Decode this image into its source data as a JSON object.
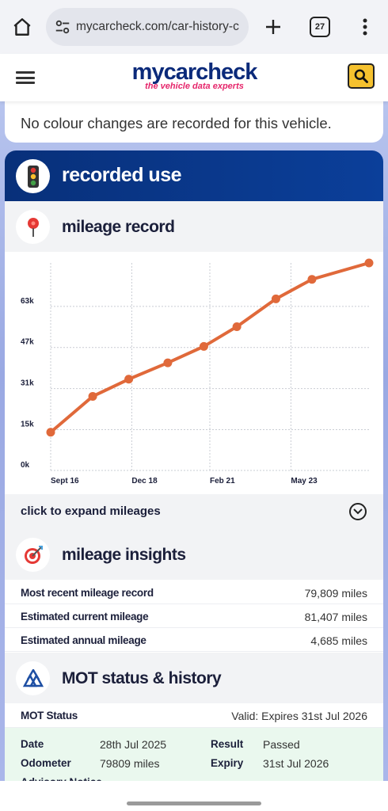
{
  "browser": {
    "url": "mycarcheck.com/car-history-c",
    "tab_count": "27"
  },
  "site": {
    "logo_main": "mycarcheck",
    "logo_tagline": "the vehicle data experts",
    "colors": {
      "navy": "#0b2a7a",
      "pink": "#e6266b",
      "search_yellow": "#f5c12e",
      "line_orange": "#e0693a"
    }
  },
  "colour_notice": "No colour changes are recorded for this vehicle.",
  "recorded_use": {
    "title": "recorded use",
    "icon": "traffic-light-icon"
  },
  "mileage_record": {
    "title": "mileage record",
    "icon": "map-pin-icon",
    "expand_label": "click to expand mileages"
  },
  "chart_data": {
    "type": "line",
    "categories": [
      "Sept 16",
      "Dec 18",
      "Feb 21",
      "May 23"
    ],
    "y_ticks": [
      "0k",
      "15k",
      "31k",
      "47k",
      "63k"
    ],
    "ylim": [
      0,
      79809
    ],
    "x_range": [
      "2016-09",
      "2025-07"
    ],
    "grid": true,
    "series": [
      {
        "color": "#e0693a",
        "points": [
          {
            "x": "2016-09",
            "y": 14700
          },
          {
            "x": "2017-11",
            "y": 28500
          },
          {
            "x": "2018-11",
            "y": 35100
          },
          {
            "x": "2019-12",
            "y": 41400
          },
          {
            "x": "2020-12",
            "y": 47700
          },
          {
            "x": "2021-11",
            "y": 55300
          },
          {
            "x": "2022-12",
            "y": 66000
          },
          {
            "x": "2023-12",
            "y": 73500
          },
          {
            "x": "2025-07",
            "y": 79809
          }
        ]
      }
    ]
  },
  "mileage_insights": {
    "title": "mileage insights",
    "icon": "target-icon",
    "rows": [
      {
        "label": "Most recent mileage record",
        "value": "79,809 miles"
      },
      {
        "label": "Estimated current mileage",
        "value": "81,407 miles"
      },
      {
        "label": "Estimated annual mileage",
        "value": "4,685 miles"
      }
    ]
  },
  "mot": {
    "title": "MOT status & history",
    "icon": "mot-triangle-icon",
    "status_label": "MOT Status",
    "status_value": "Valid: Expires 31st Jul 2026",
    "date_label": "Date",
    "date_value": "28th Jul 2025",
    "result_label": "Result",
    "result_value": "Passed",
    "odometer_label": "Odometer",
    "odometer_value": "79809 miles",
    "expiry_label": "Expiry",
    "expiry_value": "31st Jul 2026",
    "advisory_label": "Advisory Notice"
  }
}
